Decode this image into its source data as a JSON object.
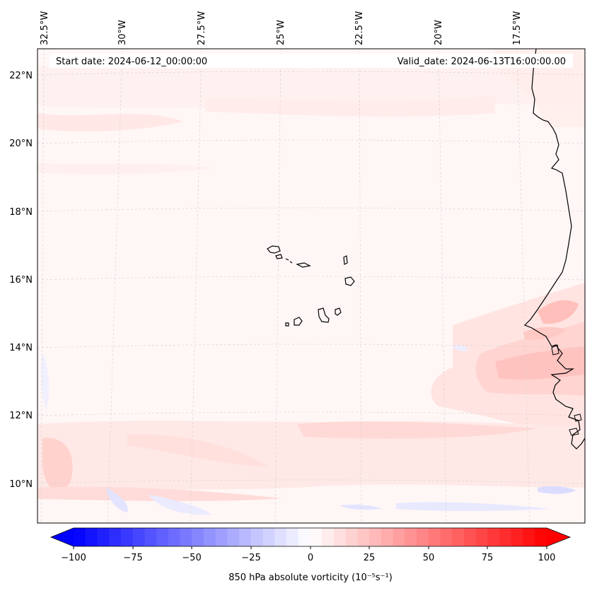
{
  "header": {
    "start_date": "Start date: 2024-06-12_00:00:00",
    "valid_date": "Valid_date: 2024-06-13T16:00:00.00"
  },
  "map": {
    "longitude_labels": [
      "32.5°W",
      "30°W",
      "27.5°W",
      "25°W",
      "22.5°W",
      "20°W",
      "17.5°W"
    ],
    "latitude_labels": [
      "22°N",
      "20°N",
      "18°N",
      "16°N",
      "14°N",
      "12°N",
      "10°N"
    ],
    "gridlines": true,
    "features": [
      "Cape Verde islands",
      "West African coastline"
    ]
  },
  "colorbar": {
    "label": "850 hPa absolute vorticity (10⁻⁵s⁻¹)",
    "ticks": [
      "−100",
      "−75",
      "−50",
      "−25",
      "0",
      "25",
      "50",
      "75",
      "100"
    ],
    "min": -100,
    "max": 100,
    "colormap": "bwr",
    "color_min": "#0000ff",
    "color_mid": "#ffffff",
    "color_max": "#ff0000"
  }
}
